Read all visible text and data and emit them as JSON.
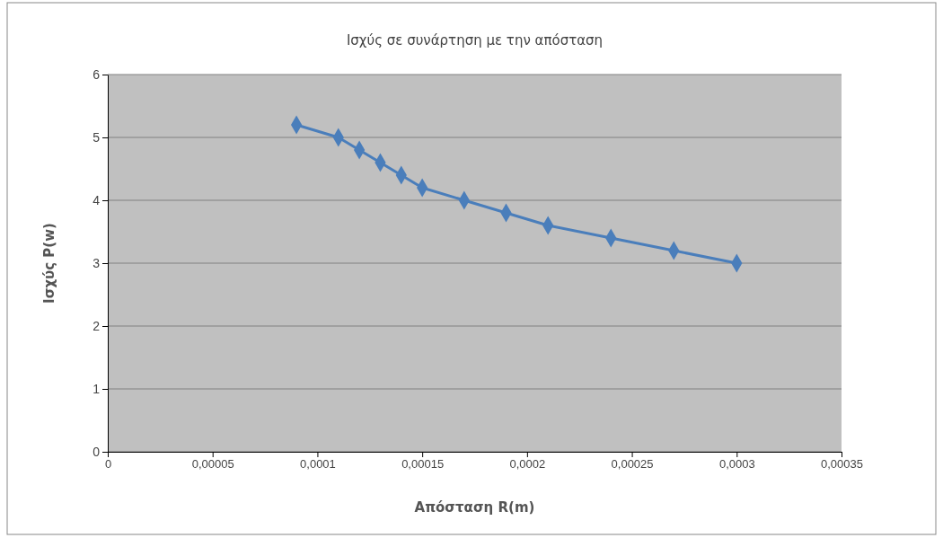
{
  "chart_data": {
    "type": "line",
    "title": "Ισχύς σε συνάρτηση  με την απόσταση",
    "xlabel": "Απόσταση R(m)",
    "ylabel": "Ισχύς P(w)",
    "x": [
      9e-05,
      0.00011,
      0.00012,
      0.00013,
      0.00014,
      0.00015,
      0.00017,
      0.00019,
      0.00021,
      0.00024,
      0.00027,
      0.0003
    ],
    "series": [
      {
        "color": "#4a7ebb",
        "values": [
          5.2,
          5.0,
          4.8,
          4.6,
          4.4,
          4.2,
          4.0,
          3.8,
          3.6,
          3.4,
          3.2,
          3.0
        ]
      }
    ],
    "xlim": [
      0,
      0.00035
    ],
    "xticks": [
      0,
      {
        "value": 5e-05,
        "label": "0,00005"
      },
      {
        "value": 0.0001,
        "label": "0,0001"
      },
      {
        "value": 0.00015,
        "label": "0,00015"
      },
      {
        "value": 0.0002,
        "label": "0,0002"
      },
      {
        "value": 0.00025,
        "label": "0,00025"
      },
      {
        "value": 0.0003,
        "label": "0,0003"
      },
      {
        "value": 0.00035,
        "label": "0,00035"
      }
    ],
    "ylim": [
      0,
      6
    ],
    "yticks": [
      0,
      1,
      2,
      3,
      4,
      5,
      6
    ],
    "grid": "y",
    "marker": "diamond",
    "line_style": "solid"
  }
}
